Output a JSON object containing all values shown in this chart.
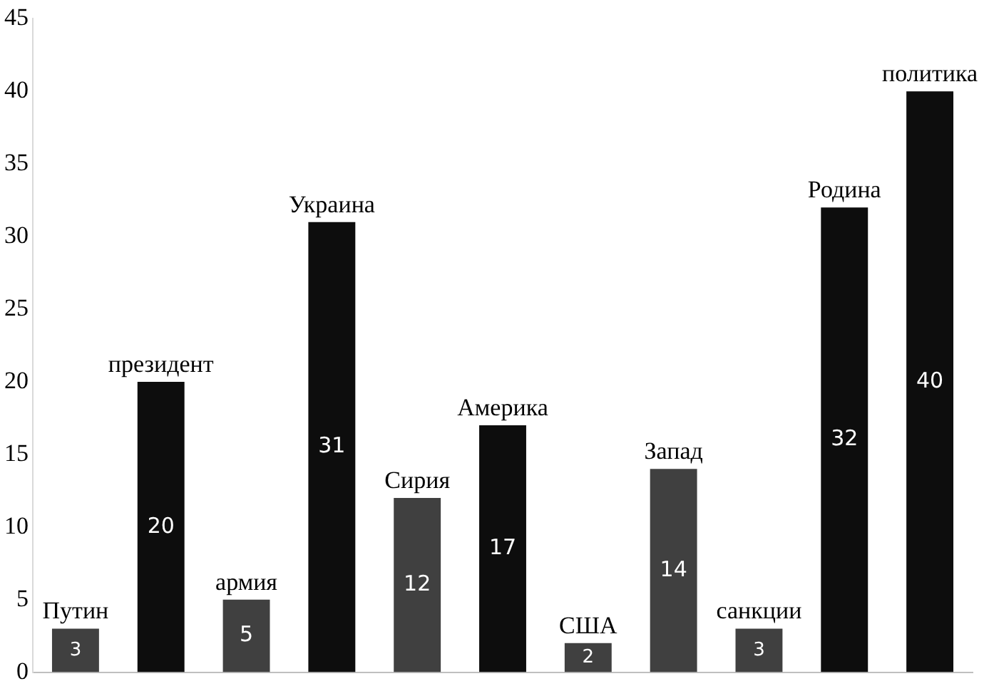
{
  "chart_data": {
    "type": "bar",
    "categories": [
      "Путин",
      "президент",
      "армия",
      "Украина",
      "Сирия",
      "Америка",
      "США",
      "Запад",
      "санкции",
      "Родина",
      "политика"
    ],
    "values": [
      3,
      20,
      5,
      31,
      12,
      17,
      2,
      14,
      3,
      32,
      40
    ],
    "colors": [
      "#404040",
      "#0d0d0d",
      "#404040",
      "#0d0d0d",
      "#404040",
      "#0d0d0d",
      "#404040",
      "#404040",
      "#404040",
      "#0d0d0d",
      "#0d0d0d"
    ],
    "ylim": [
      0,
      45
    ],
    "yticks": [
      0,
      5,
      10,
      15,
      20,
      25,
      30,
      35,
      40,
      45
    ],
    "data_labels": true,
    "grid": false,
    "legend": false
  }
}
